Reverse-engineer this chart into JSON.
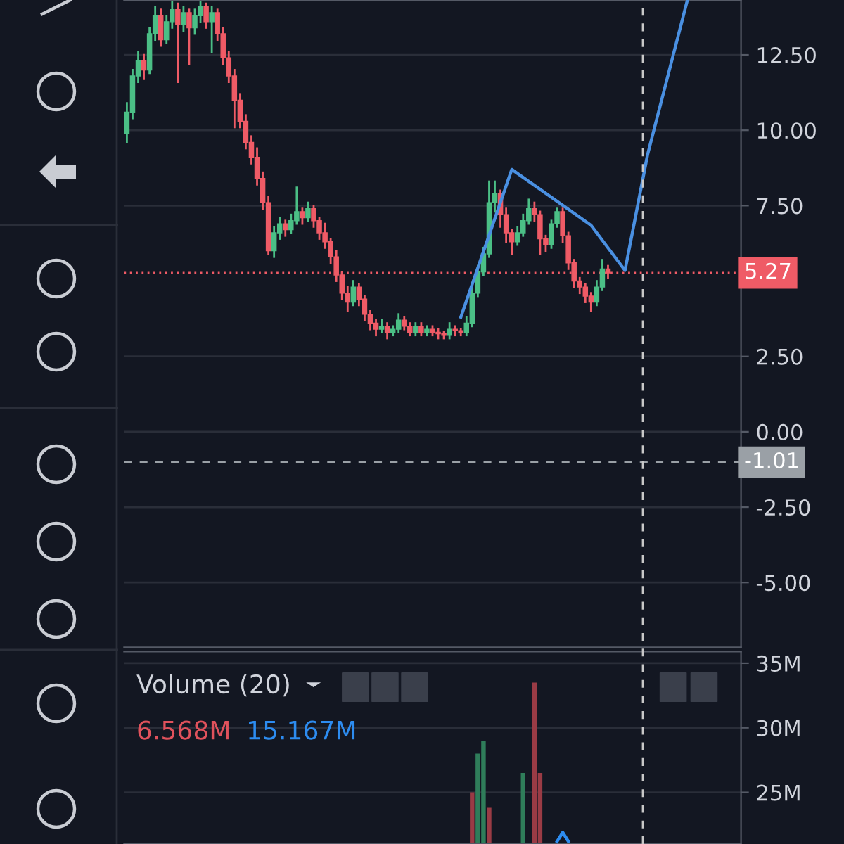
{
  "chart_data": [
    {
      "type": "candlestick",
      "categories": [
        null,
        null,
        null,
        null,
        null,
        null,
        null,
        null,
        null,
        null,
        null,
        null,
        null,
        null,
        null,
        null,
        null,
        null,
        null,
        null,
        null,
        null,
        null,
        null,
        null,
        null,
        null,
        null,
        null,
        null,
        null,
        null,
        null,
        null,
        null,
        null,
        null,
        null,
        null,
        null,
        null,
        null,
        null,
        null,
        null,
        null,
        null,
        null,
        null,
        null,
        null,
        null,
        null,
        null,
        null,
        null,
        null,
        null,
        null,
        null,
        null,
        null,
        null,
        null,
        null,
        null,
        null,
        null,
        null,
        null,
        null,
        null,
        null,
        null,
        null,
        null,
        null,
        null,
        null,
        null,
        null,
        null,
        null,
        null,
        null,
        null,
        null,
        null,
        null,
        null,
        null,
        null,
        null,
        null,
        null,
        null,
        null,
        null,
        null,
        null,
        null,
        null,
        null,
        null,
        null,
        null,
        null,
        null,
        null
      ],
      "ohlc": [
        [
          9.9,
          10.9,
          9.6,
          10.6
        ],
        [
          10.6,
          12.0,
          10.4,
          11.8
        ],
        [
          11.8,
          12.6,
          11.6,
          12.3
        ],
        [
          12.3,
          12.5,
          11.7,
          12.0
        ],
        [
          12.0,
          13.4,
          11.9,
          13.2
        ],
        [
          13.2,
          14.1,
          13.0,
          13.8
        ],
        [
          13.8,
          14.0,
          12.8,
          13.0
        ],
        [
          13.0,
          13.8,
          12.9,
          13.6
        ],
        [
          13.6,
          14.3,
          13.4,
          14.0
        ],
        [
          14.0,
          14.2,
          11.6,
          13.5
        ],
        [
          13.5,
          14.1,
          13.3,
          13.9
        ],
        [
          13.9,
          14.0,
          12.2,
          13.4
        ],
        [
          13.4,
          14.0,
          13.2,
          13.8
        ],
        [
          13.8,
          14.3,
          13.6,
          14.1
        ],
        [
          14.1,
          14.2,
          13.4,
          13.6
        ],
        [
          13.6,
          14.1,
          12.6,
          13.9
        ],
        [
          13.9,
          14.0,
          13.0,
          13.2
        ],
        [
          13.2,
          13.4,
          12.2,
          12.4
        ],
        [
          12.4,
          12.6,
          11.6,
          11.8
        ],
        [
          11.8,
          12.0,
          10.1,
          11.0
        ],
        [
          11.0,
          11.2,
          10.1,
          10.3
        ],
        [
          10.3,
          10.5,
          9.4,
          9.6
        ],
        [
          9.6,
          9.8,
          8.9,
          9.1
        ],
        [
          9.1,
          9.4,
          8.2,
          8.4
        ],
        [
          8.4,
          8.6,
          7.4,
          7.6
        ],
        [
          7.6,
          7.8,
          5.9,
          6.0
        ],
        [
          6.0,
          6.8,
          5.8,
          6.6
        ],
        [
          6.6,
          7.1,
          6.4,
          6.9
        ],
        [
          6.9,
          7.0,
          6.5,
          6.7
        ],
        [
          6.7,
          7.2,
          6.6,
          7.0
        ],
        [
          7.0,
          8.1,
          6.9,
          7.3
        ],
        [
          7.3,
          7.4,
          6.9,
          7.1
        ],
        [
          7.1,
          7.6,
          7.0,
          7.4
        ],
        [
          7.4,
          7.5,
          6.8,
          7.0
        ],
        [
          7.0,
          7.1,
          6.4,
          6.6
        ],
        [
          6.6,
          6.9,
          6.1,
          6.3
        ],
        [
          6.3,
          6.4,
          5.6,
          5.8
        ],
        [
          5.8,
          6.0,
          5.0,
          5.2
        ],
        [
          5.2,
          5.3,
          4.4,
          4.6
        ],
        [
          4.6,
          4.8,
          4.0,
          4.3
        ],
        [
          4.3,
          5.0,
          4.2,
          4.8
        ],
        [
          4.8,
          4.9,
          4.2,
          4.4
        ],
        [
          4.4,
          4.5,
          3.7,
          3.9
        ],
        [
          3.9,
          4.0,
          3.4,
          3.6
        ],
        [
          3.6,
          3.7,
          3.2,
          3.4
        ],
        [
          3.4,
          3.7,
          3.3,
          3.5
        ],
        [
          3.5,
          3.6,
          3.1,
          3.3
        ],
        [
          3.3,
          3.5,
          3.2,
          3.4
        ],
        [
          3.4,
          3.9,
          3.3,
          3.7
        ],
        [
          3.7,
          3.8,
          3.4,
          3.5
        ],
        [
          3.5,
          3.6,
          3.2,
          3.3
        ],
        [
          3.3,
          3.6,
          3.2,
          3.5
        ],
        [
          3.5,
          3.6,
          3.2,
          3.3
        ],
        [
          3.3,
          3.5,
          3.2,
          3.4
        ],
        [
          3.4,
          3.5,
          3.2,
          3.3
        ],
        [
          3.3,
          3.4,
          3.1,
          3.25
        ],
        [
          3.25,
          3.3,
          3.1,
          3.2
        ],
        [
          3.2,
          3.6,
          3.1,
          3.4
        ],
        [
          3.4,
          3.5,
          3.2,
          3.35
        ],
        [
          3.35,
          3.4,
          3.2,
          3.3
        ],
        [
          3.3,
          3.8,
          3.2,
          3.6
        ],
        [
          3.6,
          4.8,
          3.5,
          4.6
        ],
        [
          4.6,
          5.5,
          4.5,
          5.3
        ],
        [
          5.3,
          6.1,
          5.2,
          5.9
        ],
        [
          5.9,
          8.3,
          5.8,
          7.6
        ],
        [
          7.6,
          8.3,
          7.3,
          7.9
        ],
        [
          7.9,
          8.0,
          6.8,
          7.2
        ],
        [
          7.2,
          7.4,
          6.3,
          6.6
        ],
        [
          6.6,
          6.7,
          5.9,
          6.3
        ],
        [
          6.3,
          6.8,
          6.2,
          6.6
        ],
        [
          6.6,
          7.2,
          6.5,
          7.0
        ],
        [
          7.0,
          7.7,
          6.9,
          7.4
        ],
        [
          7.4,
          7.6,
          7.0,
          7.2
        ],
        [
          7.2,
          7.3,
          5.9,
          6.4
        ],
        [
          6.4,
          6.5,
          6.0,
          6.2
        ],
        [
          6.2,
          7.0,
          6.1,
          6.9
        ],
        [
          6.9,
          7.4,
          6.8,
          7.3
        ],
        [
          7.3,
          7.4,
          6.3,
          6.5
        ],
        [
          6.5,
          6.6,
          5.4,
          5.6
        ],
        [
          5.6,
          5.7,
          4.8,
          5.0
        ],
        [
          5.0,
          5.1,
          4.6,
          4.8
        ],
        [
          4.8,
          4.9,
          4.3,
          4.5
        ],
        [
          4.5,
          4.6,
          4.0,
          4.3
        ],
        [
          4.3,
          5.0,
          4.2,
          4.8
        ],
        [
          4.8,
          5.7,
          4.7,
          5.4
        ],
        [
          5.4,
          5.5,
          5.1,
          5.27
        ],
        null,
        null,
        null,
        null,
        null,
        null,
        null,
        null,
        null,
        null,
        null,
        null,
        null,
        null,
        null,
        null,
        null,
        null,
        null,
        null,
        null,
        null,
        null
      ],
      "colors": [
        "#4bbf86",
        "#4bbf86",
        "#4bbf86",
        "#ef5b66",
        "#4bbf86",
        "#4bbf86",
        "#ef5b66",
        "#4bbf86",
        "#4bbf86",
        "#ef5b66",
        "#4bbf86",
        "#ef5b66",
        "#4bbf86",
        "#4bbf86",
        "#ef5b66",
        "#4bbf86",
        "#ef5b66",
        "#ef5b66",
        "#ef5b66",
        "#ef5b66",
        "#ef5b66",
        "#ef5b66",
        "#ef5b66",
        "#ef5b66",
        "#ef5b66",
        "#ef5b66",
        "#4bbf86",
        "#4bbf86",
        "#ef5b66",
        "#4bbf86",
        "#4bbf86",
        "#ef5b66",
        "#4bbf86",
        "#ef5b66",
        "#ef5b66",
        "#ef5b66",
        "#ef5b66",
        "#ef5b66",
        "#ef5b66",
        "#ef5b66",
        "#4bbf86",
        "#ef5b66",
        "#ef5b66",
        "#ef5b66",
        "#ef5b66",
        "#4bbf86",
        "#ef5b66",
        "#4bbf86",
        "#4bbf86",
        "#ef5b66",
        "#ef5b66",
        "#4bbf86",
        "#ef5b66",
        "#4bbf86",
        "#ef5b66",
        "#ef5b66",
        "#ef5b66",
        "#4bbf86",
        "#ef5b66",
        "#ef5b66",
        "#4bbf86",
        "#4bbf86",
        "#4bbf86",
        "#4bbf86",
        "#4bbf86",
        "#4bbf86",
        "#ef5b66",
        "#ef5b66",
        "#ef5b66",
        "#4bbf86",
        "#4bbf86",
        "#4bbf86",
        "#ef5b66",
        "#ef5b66",
        "#ef5b66",
        "#4bbf86",
        "#4bbf86",
        "#ef5b66",
        "#ef5b66",
        "#ef5b66",
        "#ef5b66",
        "#ef5b66",
        "#ef5b66",
        "#4bbf86",
        "#4bbf86",
        "#ef5b66",
        null,
        null,
        null,
        null,
        null,
        null,
        null,
        null,
        null,
        null,
        null,
        null,
        null,
        null,
        null,
        null,
        null,
        null,
        null,
        null,
        null,
        null,
        null
      ],
      "series": [
        {
          "type": "line",
          "color": "#4a90e2",
          "values": [
            null,
            null,
            null,
            null,
            null,
            null,
            null,
            null,
            null,
            null,
            null,
            null,
            null,
            null,
            null,
            null,
            null,
            null,
            null,
            null,
            null,
            null,
            null,
            null,
            null,
            null,
            null,
            null,
            null,
            null,
            null,
            null,
            null,
            null,
            null,
            null,
            null,
            null,
            null,
            null,
            null,
            null,
            null,
            null,
            null,
            null,
            null,
            null,
            null,
            null,
            null,
            null,
            null,
            null,
            null,
            null,
            null,
            null,
            null,
            3.8,
            null,
            null,
            null,
            null,
            null,
            null,
            null,
            null,
            8.7,
            null,
            null,
            null,
            null,
            null,
            null,
            null,
            null,
            null,
            null,
            null,
            null,
            null,
            6.85,
            null,
            null,
            null,
            null,
            null,
            5.35,
            null,
            null,
            null,
            9.2,
            null,
            null,
            null,
            null,
            null,
            null,
            14.3,
            null,
            null,
            null,
            null,
            null,
            null,
            null,
            null,
            null
          ]
        }
      ],
      "ylim": [
        -7.15,
        14.32
      ],
      "yticks": [
        {
          "value": 12.5,
          "label": "12.50"
        },
        {
          "value": 10,
          "label": "10.00"
        },
        {
          "value": 7.5,
          "label": "7.50"
        },
        {
          "value": 2.5,
          "label": "2.50"
        },
        {
          "value": 0,
          "label": "0.00"
        },
        {
          "value": -2.5,
          "label": "-2.50"
        },
        {
          "value": -5,
          "label": "-5.00"
        }
      ],
      "grid": "y",
      "tick_labels": "y",
      "ref_lines": [
        {
          "axis": "y",
          "value": 5.27,
          "label": "5.27",
          "color": "#ef5b66",
          "line_style": "dotted"
        },
        {
          "axis": "y",
          "value": -1.01,
          "label": "-1.01",
          "color": "#9aa0a6",
          "line_style": "dashed"
        }
      ]
    },
    {
      "type": "bar",
      "title": "Volume (20)",
      "categories": [
        null,
        null,
        null,
        null,
        null,
        null,
        null,
        null,
        null,
        null,
        null,
        null,
        null,
        null,
        null,
        null,
        null,
        null,
        null,
        null,
        null,
        null,
        null,
        null,
        null,
        null,
        null,
        null,
        null,
        null,
        null,
        null,
        null,
        null,
        null,
        null,
        null,
        null,
        null,
        null,
        null,
        null,
        null,
        null,
        null,
        null,
        null,
        null,
        null,
        null,
        null,
        null,
        null,
        null,
        null,
        null,
        null,
        null,
        null,
        null,
        null,
        null,
        null,
        null,
        null,
        null,
        null,
        null,
        null,
        null,
        null,
        null,
        null,
        null,
        null,
        null,
        null,
        null,
        null,
        null,
        null,
        null,
        null,
        null,
        null,
        null,
        null,
        null,
        null,
        null,
        null,
        null,
        null,
        null,
        null,
        null,
        null,
        null,
        null,
        null,
        null,
        null,
        null,
        null,
        null,
        null,
        null,
        null,
        null
      ],
      "series": [
        {
          "color": "#e0525c",
          "colors": [
            null,
            null,
            null,
            null,
            null,
            null,
            null,
            null,
            null,
            null,
            null,
            null,
            null,
            null,
            null,
            null,
            null,
            null,
            null,
            null,
            null,
            null,
            null,
            null,
            null,
            null,
            null,
            null,
            null,
            null,
            null,
            null,
            null,
            null,
            null,
            null,
            null,
            null,
            null,
            null,
            null,
            null,
            null,
            null,
            null,
            null,
            null,
            null,
            null,
            null,
            null,
            null,
            null,
            null,
            null,
            null,
            null,
            null,
            null,
            null,
            null,
            "#9a3b45",
            "#2f7d5a",
            "#2f7d5a",
            "#9a3b45",
            null,
            null,
            null,
            null,
            null,
            "#2f7d5a",
            null,
            "#9a3b45",
            "#9a3b45",
            null,
            null,
            null,
            null,
            null,
            null,
            null,
            null,
            null,
            null,
            null,
            null,
            null,
            null,
            null,
            null,
            null,
            null,
            null,
            null,
            null,
            null,
            null,
            null,
            null,
            null,
            null,
            null,
            null,
            null,
            null,
            null,
            null,
            null,
            null
          ],
          "values": [
            null,
            null,
            null,
            null,
            null,
            null,
            null,
            null,
            null,
            null,
            null,
            null,
            null,
            null,
            null,
            null,
            null,
            null,
            null,
            null,
            null,
            null,
            null,
            null,
            null,
            null,
            null,
            null,
            null,
            null,
            null,
            null,
            null,
            null,
            null,
            null,
            null,
            null,
            null,
            null,
            null,
            null,
            null,
            null,
            null,
            null,
            null,
            null,
            null,
            null,
            null,
            null,
            null,
            null,
            null,
            null,
            null,
            null,
            null,
            null,
            null,
            25.0,
            28.0,
            29.0,
            23.8,
            null,
            null,
            null,
            null,
            null,
            26.5,
            null,
            33.5,
            26.5,
            null,
            null,
            null,
            null,
            null,
            null,
            null,
            null,
            null,
            null,
            null,
            null,
            null,
            null,
            null,
            null,
            null,
            null,
            null,
            null,
            null,
            null,
            null,
            null,
            null,
            null,
            null,
            null,
            null,
            null,
            null,
            null,
            null,
            null,
            null
          ]
        },
        {
          "type": "line",
          "color": "#2d8cf0",
          "values": [
            null,
            null,
            null,
            null,
            null,
            null,
            null,
            null,
            null,
            null,
            null,
            null,
            null,
            null,
            null,
            null,
            null,
            null,
            null,
            null,
            null,
            null,
            null,
            null,
            null,
            null,
            null,
            null,
            null,
            null,
            null,
            null,
            null,
            null,
            null,
            null,
            null,
            null,
            null,
            null,
            null,
            null,
            null,
            null,
            null,
            null,
            null,
            null,
            null,
            null,
            null,
            null,
            null,
            null,
            null,
            null,
            null,
            null,
            null,
            null,
            null,
            null,
            null,
            null,
            null,
            null,
            null,
            null,
            null,
            null,
            null,
            null,
            null,
            null,
            null,
            null,
            21.2,
            21.9,
            21.2,
            null,
            null,
            null,
            null,
            null,
            null,
            null,
            null,
            null,
            null,
            null,
            null,
            null,
            null,
            null,
            null,
            null,
            null,
            null,
            null,
            null,
            null,
            null,
            null,
            null,
            null,
            null,
            null,
            null,
            null
          ]
        }
      ],
      "ylim": [
        21.0,
        35.9
      ],
      "yticks": [
        {
          "value": 25,
          "label": "25M"
        },
        {
          "value": 30,
          "label": "30M"
        },
        {
          "value": 35,
          "label": "35M"
        }
      ],
      "grid": "y",
      "tick_labels": "y",
      "annotations": [
        "6.568M",
        "15.167M"
      ]
    }
  ]
}
